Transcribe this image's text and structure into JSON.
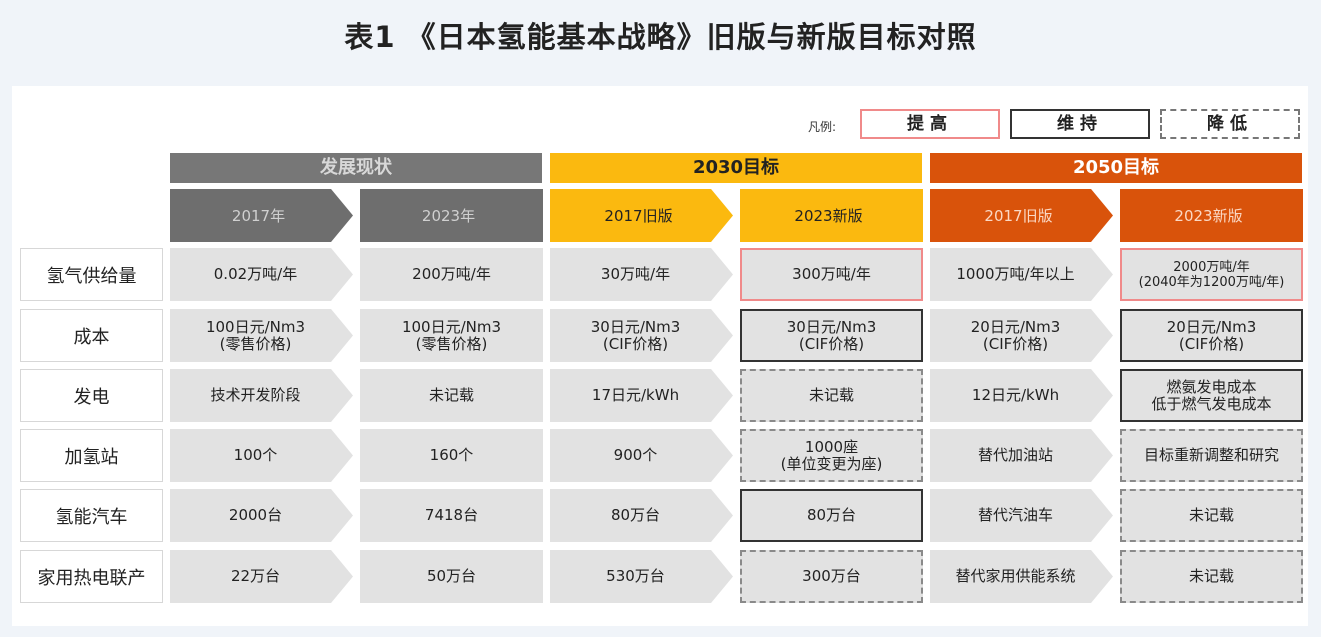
{
  "title": "表1 《日本氢能基本战略》旧版与新版目标对照",
  "legend": {
    "label": "凡例:",
    "up": "提高",
    "keep": "维持",
    "down": "降低"
  },
  "groups": [
    "发展现状",
    "2030目标",
    "2050目标"
  ],
  "subheaders": [
    "2017年",
    "2023年",
    "2017旧版",
    "2023新版",
    "2017旧版",
    "2023新版"
  ],
  "colors": {
    "gray_group": "#777777",
    "yellow_group": "#fbb90f",
    "orange_group": "#d9530b",
    "up_border": "#f08a8a",
    "keep_border": "#333333",
    "down_border": "#8a8a8a"
  },
  "rows": [
    {
      "label": "氢气供给量",
      "cells": [
        "0.02万吨/年",
        "200万吨/年",
        "30万吨/年",
        "300万吨/年",
        "1000万吨/年以上",
        "2000万吨/年\n(2040年为1200万吨/年)"
      ],
      "marks": [
        "",
        "",
        "",
        "up",
        "",
        "up"
      ]
    },
    {
      "label": "成本",
      "cells": [
        "100日元/Nm3\n(零售价格)",
        "100日元/Nm3\n(零售价格)",
        "30日元/Nm3\n(CIF价格)",
        "30日元/Nm3\n(CIF价格)",
        "20日元/Nm3\n(CIF价格)",
        "20日元/Nm3\n(CIF价格)"
      ],
      "marks": [
        "",
        "",
        "",
        "keep",
        "",
        "keep"
      ]
    },
    {
      "label": "发电",
      "cells": [
        "技术开发阶段",
        "未记载",
        "17日元/kWh",
        "未记载",
        "12日元/kWh",
        "燃氨发电成本\n低于燃气发电成本"
      ],
      "marks": [
        "",
        "",
        "",
        "down",
        "",
        "keep"
      ]
    },
    {
      "label": "加氢站",
      "cells": [
        "100个",
        "160个",
        "900个",
        "1000座\n(单位变更为座)",
        "替代加油站",
        "目标重新调整和研究"
      ],
      "marks": [
        "",
        "",
        "",
        "down",
        "",
        "down"
      ]
    },
    {
      "label": "氢能汽车",
      "cells": [
        "2000台",
        "7418台",
        "80万台",
        "80万台",
        "替代汽油车",
        "未记载"
      ],
      "marks": [
        "",
        "",
        "",
        "keep",
        "",
        "down"
      ]
    },
    {
      "label": "家用热电联产",
      "cells": [
        "22万台",
        "50万台",
        "530万台",
        "300万台",
        "替代家用供能系统",
        "未记载"
      ],
      "marks": [
        "",
        "",
        "",
        "down",
        "",
        "down"
      ]
    }
  ]
}
